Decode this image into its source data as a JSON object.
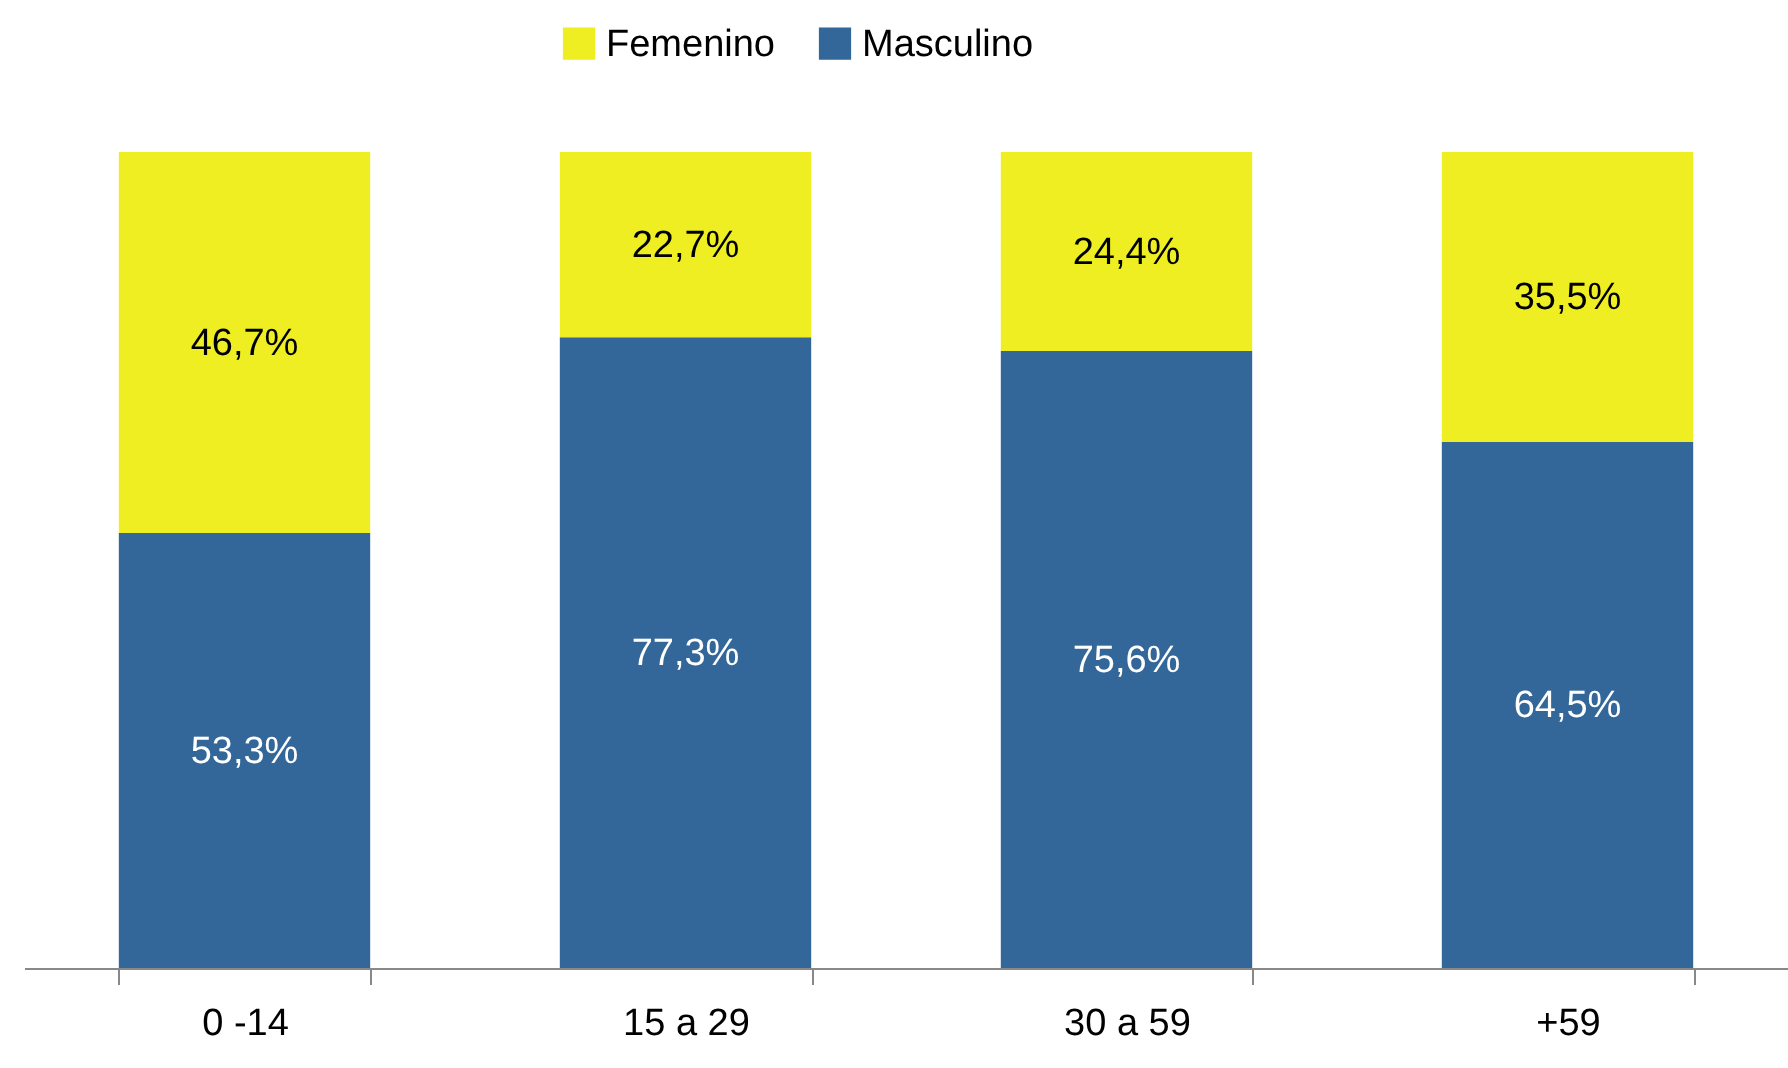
{
  "chart_data": {
    "type": "bar",
    "stacked": true,
    "legend": "top",
    "categories": [
      "0 -14",
      "15 a 29",
      "30 a 59",
      "+59"
    ],
    "series": [
      {
        "name": "Masculino",
        "color": "#336699",
        "values": [
          53.3,
          77.3,
          75.6,
          64.5
        ],
        "value_labels": [
          "53,3%",
          "77,3%",
          "75,6%",
          "64,5%"
        ]
      },
      {
        "name": "Femenino",
        "color": "#eeee22",
        "values": [
          46.7,
          22.7,
          24.4,
          35.5
        ],
        "value_labels": [
          "46,7%",
          "22,7%",
          "24,4%",
          "35,5%"
        ]
      }
    ]
  }
}
